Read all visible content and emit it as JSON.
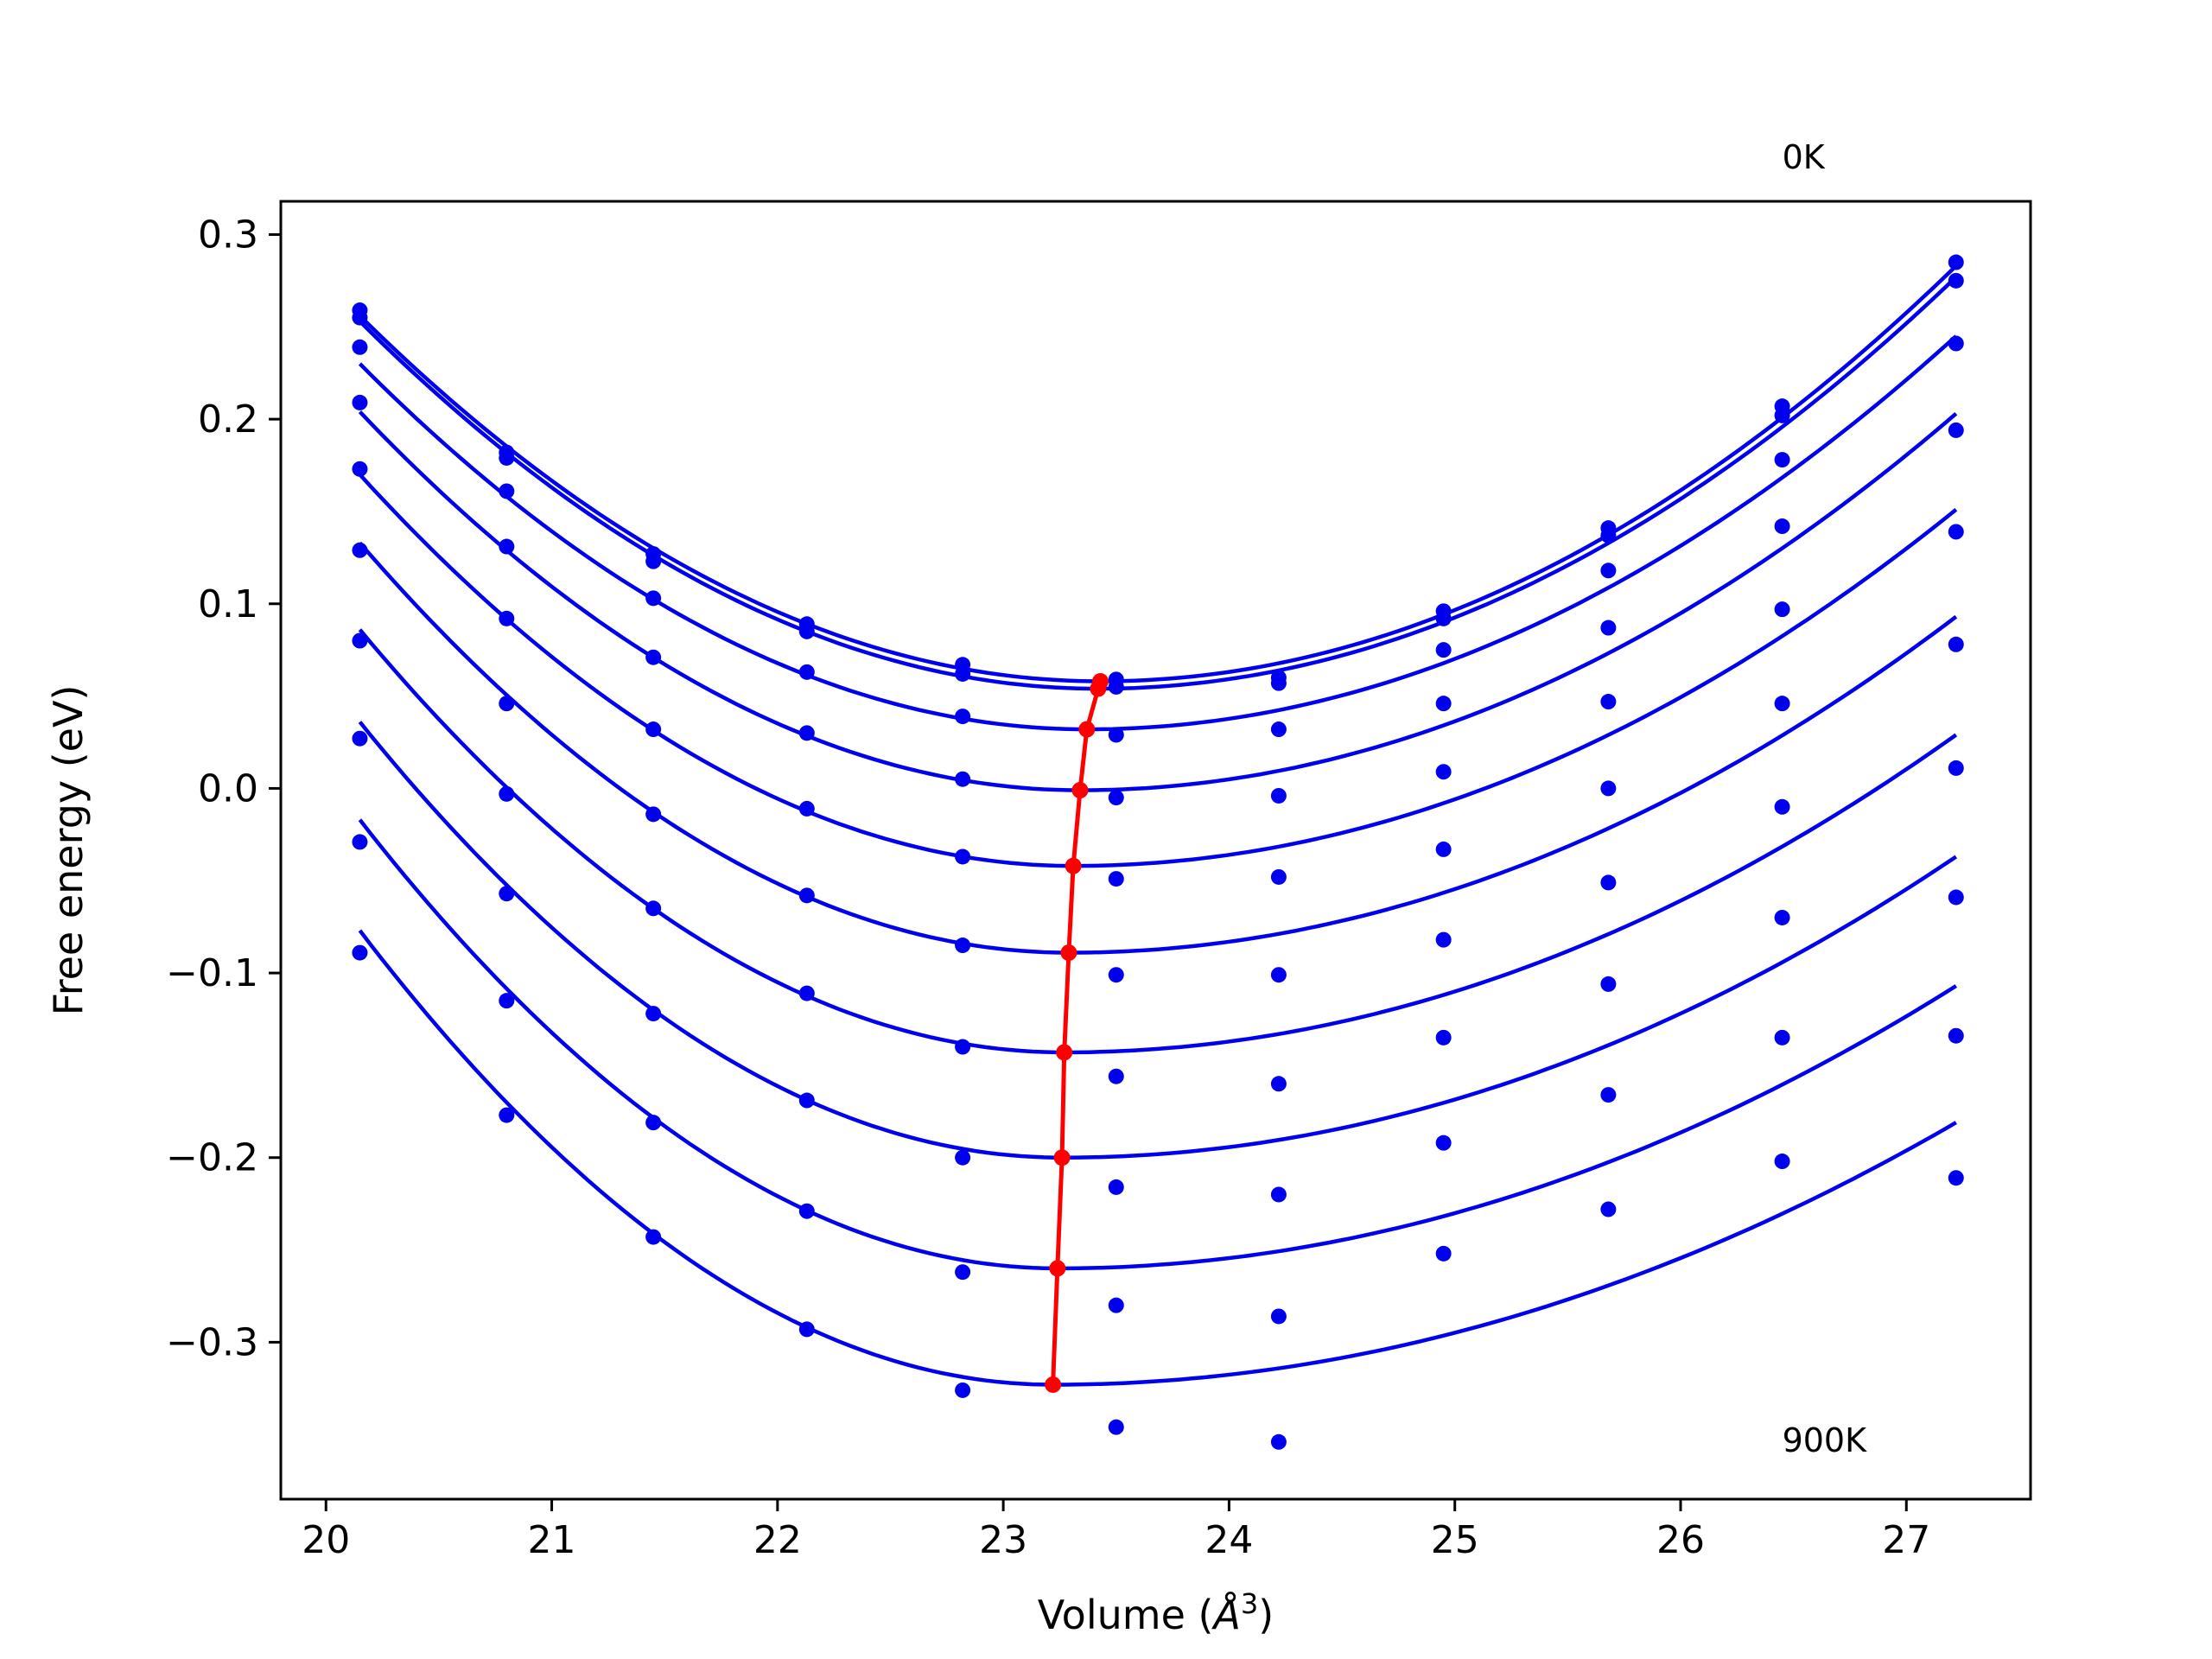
{
  "chart_data": {
    "type": "scatter",
    "title": "",
    "xlabel": "Volume (",
    "xlabel_symbol": "Å",
    "xlabel_exp": "3",
    "xlabel_close": ")",
    "ylabel": "Free energy (eV)",
    "xlim": [
      19.8,
      27.55
    ],
    "ylim": [
      -0.385,
      0.318
    ],
    "x_ticks": [
      20,
      21,
      22,
      23,
      24,
      25,
      26,
      27
    ],
    "x_tick_labels": [
      "20",
      "21",
      "22",
      "23",
      "24",
      "25",
      "26",
      "27"
    ],
    "y_ticks": [
      -0.3,
      -0.2,
      -0.1,
      0.0,
      0.1,
      0.2,
      0.3
    ],
    "y_tick_labels": [
      "−0.3",
      "−0.2",
      "−0.1",
      "0.0",
      "0.1",
      "0.2",
      "0.3"
    ],
    "grid": false,
    "colors": {
      "points": "#0000ee",
      "fits": "#0000ee",
      "minima": "#ff0000"
    },
    "annotations": {
      "top": "0K",
      "bottom": "900K"
    },
    "volumes": [
      20.15,
      20.8,
      21.45,
      22.13,
      22.82,
      23.5,
      24.22,
      24.95,
      25.68,
      26.45,
      27.22
    ],
    "series": [
      {
        "values": [
          0.259,
          0.182,
          0.127,
          0.089,
          0.067,
          0.059,
          0.06,
          0.096,
          0.141,
          0.207,
          0.285
        ],
        "fit_min": [
          23.43,
          0.058
        ]
      },
      {
        "values": [
          0.255,
          0.179,
          0.123,
          0.085,
          0.062,
          0.055,
          0.057,
          0.092,
          0.137,
          0.202,
          0.275
        ],
        "fit_min": [
          23.42,
          0.054
        ]
      },
      {
        "values": [
          0.239,
          0.161,
          0.103,
          0.063,
          0.039,
          0.029,
          0.032,
          0.075,
          0.118,
          0.178,
          0.241
        ],
        "fit_min": [
          23.37,
          0.032
        ]
      },
      {
        "values": [
          0.209,
          0.131,
          0.071,
          0.03,
          0.005,
          -0.005,
          -0.004,
          0.046,
          0.087,
          0.142,
          0.194
        ],
        "fit_min": [
          23.34,
          -0.001
        ]
      },
      {
        "values": [
          0.173,
          0.092,
          0.032,
          -0.011,
          -0.037,
          -0.049,
          -0.048,
          0.009,
          0.047,
          0.097,
          0.139
        ],
        "fit_min": [
          23.31,
          -0.042
        ]
      },
      {
        "values": [
          0.129,
          0.046,
          -0.014,
          -0.058,
          -0.085,
          -0.101,
          -0.101,
          -0.033,
          0.0,
          0.046,
          0.078
        ],
        "fit_min": [
          23.29,
          -0.089
        ]
      },
      {
        "values": [
          0.08,
          -0.003,
          -0.065,
          -0.111,
          -0.14,
          -0.156,
          -0.16,
          -0.082,
          -0.051,
          -0.01,
          0.011
        ],
        "fit_min": [
          23.27,
          -0.143
        ]
      },
      {
        "values": [
          0.027,
          -0.057,
          -0.122,
          -0.169,
          -0.2,
          -0.216,
          -0.22,
          -0.135,
          -0.106,
          -0.07,
          -0.059
        ],
        "fit_min": [
          23.26,
          -0.2
        ]
      },
      {
        "values": [
          -0.029,
          -0.115,
          -0.181,
          -0.229,
          -0.262,
          -0.28,
          -0.286,
          -0.192,
          -0.166,
          -0.135,
          -0.134
        ],
        "fit_min": [
          23.24,
          -0.26
        ]
      },
      {
        "values": [
          -0.089,
          -0.177,
          -0.243,
          -0.293,
          -0.326,
          -0.346,
          -0.354,
          -0.252,
          -0.228,
          -0.202,
          -0.211
        ],
        "fit_min": [
          23.22,
          -0.323
        ]
      }
    ],
    "fits": [
      {
        "start": 0.256,
        "end": 0.283
      },
      {
        "start": 0.253,
        "end": 0.277
      },
      {
        "start": 0.23,
        "end": 0.245
      },
      {
        "start": 0.204,
        "end": 0.203
      },
      {
        "start": 0.17,
        "end": 0.151
      },
      {
        "start": 0.133,
        "end": 0.093
      },
      {
        "start": 0.086,
        "end": 0.029
      },
      {
        "start": 0.036,
        "end": -0.037
      },
      {
        "start": -0.017,
        "end": -0.107
      },
      {
        "start": -0.077,
        "end": -0.181
      }
    ]
  }
}
